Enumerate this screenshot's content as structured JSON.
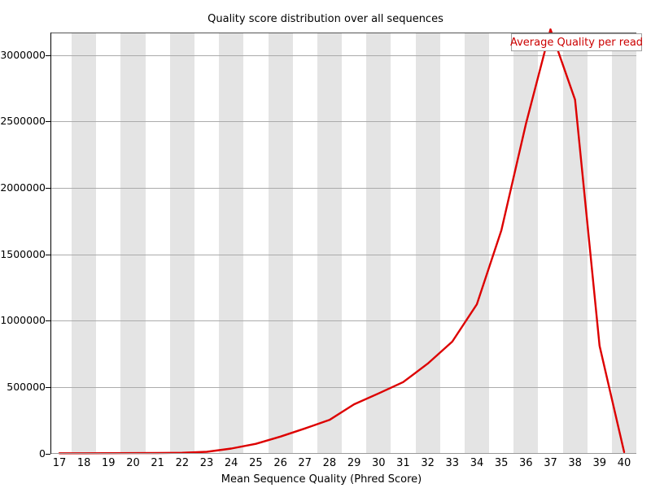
{
  "title": "Quality score distribution over all sequences",
  "legend": {
    "label": "Average Quality per read"
  },
  "axes": {
    "x_title": "Mean Sequence Quality (Phred Score)",
    "y_tick_labels": [
      "0",
      "500000",
      "1000000",
      "1500000",
      "2000000",
      "2500000",
      "3000000"
    ]
  },
  "colors": {
    "line": "#dd0000",
    "legend_text": "#cc0000",
    "legend_border": "#a0a0a0",
    "band": "#e4e4e4",
    "gridline": "#ababab",
    "background": "#ffffff"
  },
  "chart_data": {
    "type": "line",
    "title": "Quality score distribution over all sequences",
    "xlabel": "Mean Sequence Quality (Phred Score)",
    "ylabel": "",
    "x": [
      17,
      18,
      19,
      20,
      21,
      22,
      23,
      24,
      25,
      26,
      27,
      28,
      29,
      30,
      31,
      32,
      33,
      34,
      35,
      36,
      37,
      38,
      39,
      40
    ],
    "series": [
      {
        "name": "Average Quality per read",
        "color": "#dd0000",
        "values": [
          1000,
          1500,
          2000,
          2500,
          3000,
          5000,
          12000,
          37000,
          72000,
          127000,
          188000,
          252000,
          370000,
          452000,
          537000,
          676000,
          842000,
          1123000,
          1679000,
          2481000,
          3192000,
          2662000,
          810000,
          10000
        ]
      }
    ],
    "xlim": [
      16.6,
      40.5
    ],
    "ylim": [
      0,
      3170000
    ],
    "yticks": [
      0,
      500000,
      1000000,
      1500000,
      2000000,
      2500000,
      3000000
    ],
    "grid": "horizontal gray lines at each y tick",
    "background_bands": "light gray vertical bands one unit wide centered on even x values",
    "legend_position": "top-right"
  }
}
